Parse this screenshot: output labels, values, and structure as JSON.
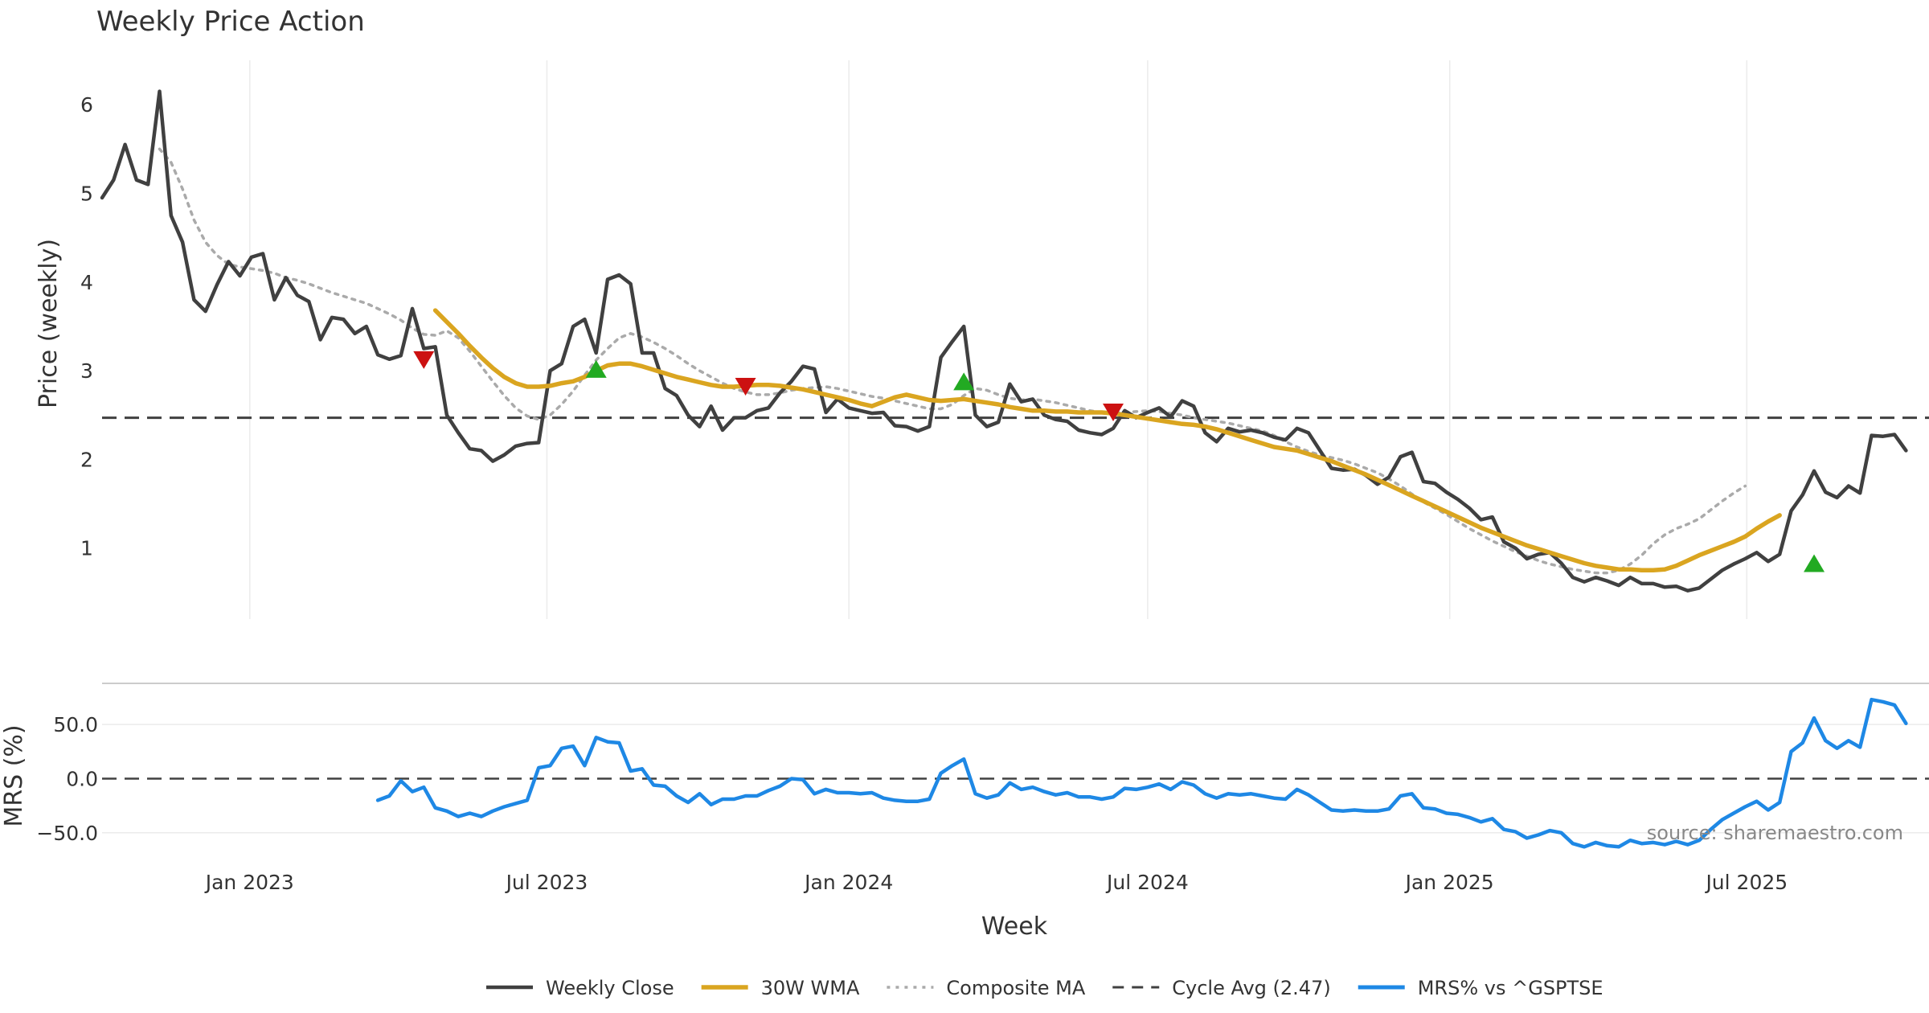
{
  "chart_data": {
    "type": "line",
    "title": "Weekly Price Action",
    "xlabel": "Week",
    "source": "source: sharemaestro.com",
    "x_start": "2022-10-03",
    "x_range": [
      "2022-10-03",
      "2025-10-20"
    ],
    "x_ticks": [
      {
        "date": "2023-01-01",
        "label": "Jan 2023"
      },
      {
        "date": "2023-07-01",
        "label": "Jul 2023"
      },
      {
        "date": "2024-01-01",
        "label": "Jan 2024"
      },
      {
        "date": "2024-07-01",
        "label": "Jul 2024"
      },
      {
        "date": "2025-01-01",
        "label": "Jan 2025"
      },
      {
        "date": "2025-07-01",
        "label": "Jul 2025"
      }
    ],
    "price_panel": {
      "ylabel": "Price (weekly)",
      "ylim": [
        0.2,
        6.5
      ],
      "yticks": [
        1,
        2,
        3,
        4,
        5,
        6
      ],
      "cycle_avg": 2.47,
      "series": [
        {
          "name": "Weekly Close",
          "color": "#404040",
          "style": "solid",
          "start_week": 0,
          "values": [
            4.95,
            5.15,
            5.55,
            5.15,
            5.1,
            6.15,
            4.75,
            4.45,
            3.8,
            3.67,
            3.97,
            4.23,
            4.07,
            4.28,
            4.32,
            3.8,
            4.05,
            3.85,
            3.78,
            3.35,
            3.6,
            3.58,
            3.42,
            3.5,
            3.18,
            3.13,
            3.17,
            3.7,
            3.25,
            3.27,
            2.5,
            2.3,
            2.12,
            2.1,
            1.98,
            2.05,
            2.15,
            2.18,
            2.19,
            3.0,
            3.08,
            3.5,
            3.58,
            3.2,
            4.03,
            4.08,
            3.98,
            3.2,
            3.2,
            2.8,
            2.72,
            2.5,
            2.37,
            2.6,
            2.33,
            2.47,
            2.47,
            2.55,
            2.58,
            2.75,
            2.88,
            3.05,
            3.02,
            2.53,
            2.68,
            2.58,
            2.55,
            2.52,
            2.53,
            2.38,
            2.37,
            2.32,
            2.37,
            3.15,
            3.33,
            3.5,
            2.5,
            2.37,
            2.42,
            2.85,
            2.65,
            2.68,
            2.5,
            2.45,
            2.43,
            2.33,
            2.3,
            2.28,
            2.35,
            2.55,
            2.47,
            2.53,
            2.58,
            2.48,
            2.66,
            2.6,
            2.3,
            2.2,
            2.35,
            2.31,
            2.33,
            2.3,
            2.25,
            2.22,
            2.35,
            2.3,
            2.1,
            1.9,
            1.88,
            1.89,
            1.82,
            1.72,
            1.8,
            2.03,
            2.08,
            1.75,
            1.73,
            1.63,
            1.55,
            1.45,
            1.32,
            1.35,
            1.07,
            1.0,
            0.88,
            0.93,
            0.95,
            0.83,
            0.67,
            0.62,
            0.67,
            0.63,
            0.58,
            0.67,
            0.6,
            0.6,
            0.56,
            0.57,
            0.52,
            0.55,
            0.65,
            0.75,
            0.82,
            0.88,
            0.95,
            0.85,
            0.93,
            1.42,
            1.6,
            1.87,
            1.63,
            1.57,
            1.7,
            1.62,
            2.27,
            2.26,
            2.28,
            2.1
          ]
        },
        {
          "name": "30W WMA",
          "color": "#DAA520",
          "style": "solid",
          "start_week": 29,
          "values": [
            3.68,
            3.55,
            3.42,
            3.28,
            3.15,
            3.03,
            2.93,
            2.86,
            2.82,
            2.82,
            2.83,
            2.86,
            2.88,
            2.93,
            3.0,
            3.06,
            3.08,
            3.08,
            3.05,
            3.01,
            2.97,
            2.93,
            2.9,
            2.87,
            2.84,
            2.82,
            2.82,
            2.83,
            2.84,
            2.84,
            2.83,
            2.81,
            2.79,
            2.76,
            2.73,
            2.7,
            2.67,
            2.63,
            2.6,
            2.65,
            2.7,
            2.73,
            2.7,
            2.67,
            2.66,
            2.67,
            2.68,
            2.66,
            2.64,
            2.62,
            2.59,
            2.57,
            2.55,
            2.55,
            2.54,
            2.54,
            2.53,
            2.53,
            2.53,
            2.52,
            2.5,
            2.48,
            2.46,
            2.44,
            2.42,
            2.4,
            2.39,
            2.37,
            2.34,
            2.3,
            2.26,
            2.22,
            2.18,
            2.14,
            2.12,
            2.1,
            2.06,
            2.02,
            1.98,
            1.93,
            1.88,
            1.83,
            1.77,
            1.71,
            1.65,
            1.59,
            1.53,
            1.47,
            1.41,
            1.35,
            1.29,
            1.23,
            1.18,
            1.13,
            1.08,
            1.03,
            0.99,
            0.95,
            0.91,
            0.87,
            0.83,
            0.8,
            0.78,
            0.76,
            0.76,
            0.75,
            0.75,
            0.76,
            0.8,
            0.86,
            0.92,
            0.97,
            1.02,
            1.07,
            1.13,
            1.22,
            1.3,
            1.37
          ]
        },
        {
          "name": "Composite MA",
          "color": "#AAAAAA",
          "style": "dotted",
          "start_week": 5,
          "values": [
            5.5,
            5.35,
            5.05,
            4.7,
            4.45,
            4.3,
            4.2,
            4.17,
            4.15,
            4.13,
            4.1,
            4.05,
            4.02,
            3.98,
            3.93,
            3.88,
            3.84,
            3.8,
            3.76,
            3.7,
            3.64,
            3.57,
            3.48,
            3.41,
            3.4,
            3.45,
            3.37,
            3.22,
            3.05,
            2.88,
            2.72,
            2.58,
            2.49,
            2.45,
            2.5,
            2.62,
            2.77,
            2.95,
            3.12,
            3.25,
            3.37,
            3.42,
            3.38,
            3.32,
            3.25,
            3.17,
            3.08,
            3.0,
            2.93,
            2.86,
            2.8,
            2.76,
            2.73,
            2.73,
            2.75,
            2.78,
            2.8,
            2.81,
            2.82,
            2.8,
            2.77,
            2.74,
            2.71,
            2.69,
            2.66,
            2.63,
            2.6,
            2.57,
            2.57,
            2.62,
            2.72,
            2.8,
            2.78,
            2.73,
            2.69,
            2.67,
            2.68,
            2.66,
            2.64,
            2.61,
            2.58,
            2.55,
            2.53,
            2.52,
            2.53,
            2.54,
            2.55,
            2.54,
            2.52,
            2.5,
            2.47,
            2.45,
            2.43,
            2.41,
            2.38,
            2.35,
            2.32,
            2.27,
            2.2,
            2.14,
            2.09,
            2.05,
            2.02,
            1.99,
            1.95,
            1.9,
            1.85,
            1.78,
            1.7,
            1.61,
            1.52,
            1.45,
            1.38,
            1.3,
            1.22,
            1.15,
            1.08,
            1.02,
            0.96,
            0.91,
            0.86,
            0.82,
            0.79,
            0.76,
            0.74,
            0.72,
            0.72,
            0.75,
            0.82,
            0.92,
            1.05,
            1.15,
            1.22,
            1.27,
            1.33,
            1.43,
            1.53,
            1.62,
            1.7
          ]
        }
      ],
      "markers": [
        {
          "type": "sell",
          "week": 28,
          "value": 3.12,
          "color": "#CC1111"
        },
        {
          "type": "buy",
          "week": 43,
          "value": 3.02,
          "color": "#22AA22"
        },
        {
          "type": "sell",
          "week": 56,
          "value": 2.82,
          "color": "#CC1111"
        },
        {
          "type": "buy",
          "week": 75,
          "value": 2.88,
          "color": "#22AA22"
        },
        {
          "type": "sell",
          "week": 88,
          "value": 2.53,
          "color": "#CC1111"
        },
        {
          "type": "buy",
          "week": 149,
          "value": 0.83,
          "color": "#22AA22"
        }
      ]
    },
    "mrs_panel": {
      "ylabel": "MRS (%)",
      "ylim": [
        -68,
        88
      ],
      "yticks": [
        50,
        0,
        -50
      ],
      "ytick_labels": [
        "50.0",
        "0.0",
        "−50.0"
      ],
      "zero_line": 0,
      "series": [
        {
          "name": "MRS% vs ^GSPTSE",
          "color": "#1E88E5",
          "style": "solid",
          "start_week": 24,
          "values": [
            -20,
            -16,
            -2,
            -12,
            -8,
            -27,
            -30,
            -35,
            -32,
            -35,
            -30,
            -26,
            -23,
            -20,
            10,
            12,
            28,
            30,
            12,
            38,
            34,
            33,
            7,
            9,
            -6,
            -7,
            -16,
            -22,
            -14,
            -24,
            -19,
            -19,
            -16,
            -16,
            -11,
            -7,
            0,
            -1,
            -14,
            -10,
            -13,
            -13,
            -14,
            -13,
            -18,
            -20,
            -21,
            -21,
            -19,
            5,
            12,
            18,
            -14,
            -18,
            -15,
            -4,
            -10,
            -8,
            -12,
            -15,
            -13,
            -17,
            -17,
            -19,
            -17,
            -9,
            -10,
            -8,
            -5,
            -10,
            -3,
            -6,
            -14,
            -18,
            -14,
            -15,
            -14,
            -16,
            -18,
            -19,
            -10,
            -15,
            -22,
            -29,
            -30,
            -29,
            -30,
            -30,
            -28,
            -16,
            -14,
            -27,
            -28,
            -32,
            -33,
            -36,
            -40,
            -37,
            -47,
            -49,
            -55,
            -52,
            -48,
            -50,
            -60,
            -63,
            -59,
            -62,
            -63,
            -57,
            -60,
            -59,
            -61,
            -58,
            -61,
            -57,
            -47,
            -38,
            -32,
            -26,
            -21,
            -29,
            -22,
            25,
            33,
            56,
            35,
            28,
            35,
            29,
            73,
            71,
            68,
            51
          ]
        }
      ]
    },
    "legend": [
      {
        "label": "Weekly Close",
        "color": "#404040",
        "style": "solid"
      },
      {
        "label": "30W WMA",
        "color": "#DAA520",
        "style": "solid"
      },
      {
        "label": "Composite MA",
        "color": "#AAAAAA",
        "style": "dotted"
      },
      {
        "label": "Cycle Avg (2.47)",
        "color": "#404040",
        "style": "dashed"
      },
      {
        "label": "MRS% vs ^GSPTSE",
        "color": "#1E88E5",
        "style": "solid"
      }
    ]
  }
}
